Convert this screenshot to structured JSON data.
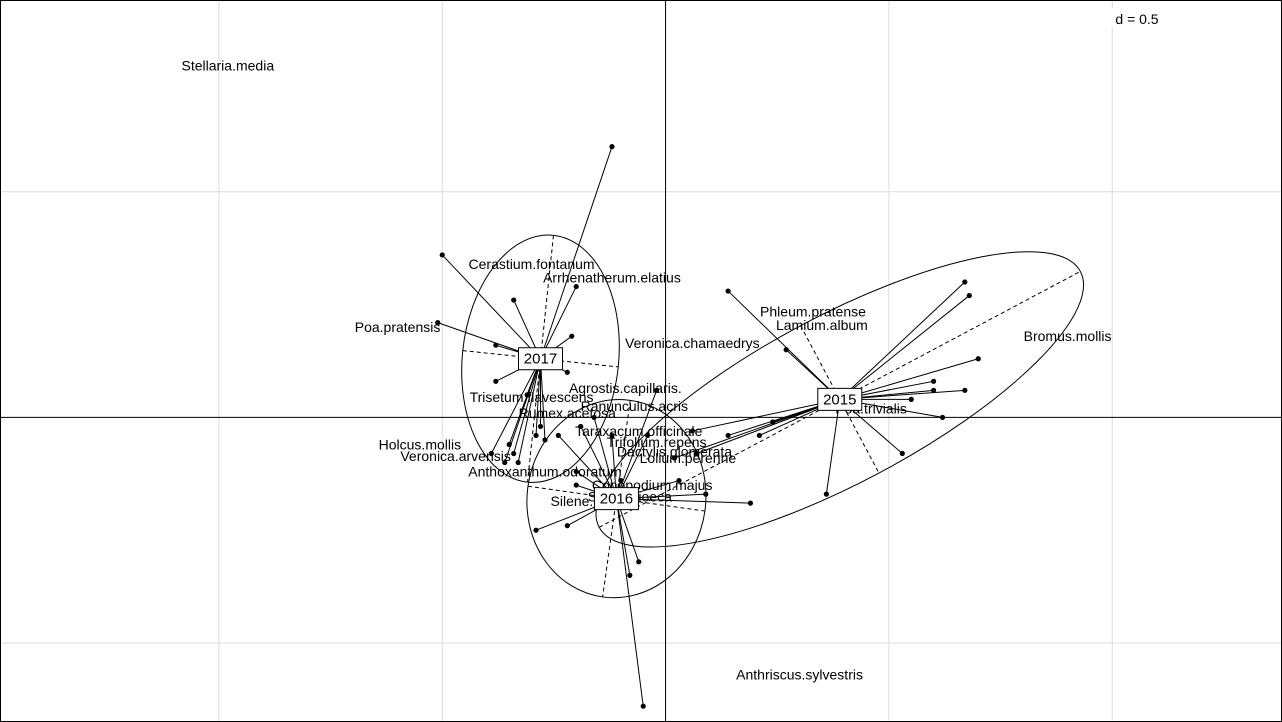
{
  "chart_data": {
    "type": "scatter",
    "title": "",
    "grid_scale_label": "d = 0.5",
    "grid": true,
    "xlim": [
      -1.49,
      1.38
    ],
    "ylim": [
      -0.675,
      0.925
    ],
    "grid_step": 0.5,
    "groups": [
      {
        "name": "2017",
        "center": [
          -0.28,
          0.13
        ],
        "ellipse": {
          "rx": 0.175,
          "ry": 0.275,
          "angle": 6
        },
        "points": [
          [
            -0.12,
            0.6
          ],
          [
            -0.5,
            0.36
          ],
          [
            -0.51,
            0.21
          ],
          [
            -0.34,
            0.26
          ],
          [
            -0.2,
            0.29
          ],
          [
            -0.21,
            0.18
          ],
          [
            -0.38,
            0.16
          ],
          [
            -0.32,
            0.14
          ],
          [
            -0.22,
            0.1
          ],
          [
            -0.38,
            0.08
          ],
          [
            -0.31,
            0.05
          ],
          [
            -0.39,
            -0.08
          ],
          [
            -0.35,
            -0.06
          ],
          [
            -0.29,
            -0.04
          ],
          [
            -0.33,
            -0.1
          ],
          [
            -0.28,
            -0.02
          ],
          [
            -0.34,
            -0.08
          ],
          [
            -0.36,
            -0.1
          ],
          [
            -0.27,
            -0.05
          ]
        ]
      },
      {
        "name": "2016",
        "center": [
          -0.11,
          -0.18
        ],
        "ellipse": {
          "rx": 0.2,
          "ry": 0.22,
          "angle": 8
        },
        "points": [
          [
            -0.05,
            -0.64
          ],
          [
            -0.06,
            -0.32
          ],
          [
            -0.08,
            -0.35
          ],
          [
            -0.29,
            -0.25
          ],
          [
            -0.22,
            -0.24
          ],
          [
            -0.12,
            -0.04
          ],
          [
            -0.19,
            -0.02
          ],
          [
            -0.24,
            -0.04
          ],
          [
            -0.16,
            0.0
          ],
          [
            -0.02,
            0.06
          ],
          [
            0.19,
            -0.19
          ],
          [
            0.09,
            -0.17
          ],
          [
            -0.04,
            -0.04
          ],
          [
            -0.2,
            -0.15
          ],
          [
            -0.1,
            -0.14
          ],
          [
            -0.2,
            -0.12
          ],
          [
            0.03,
            -0.14
          ]
        ]
      },
      {
        "name": "2015",
        "center": [
          0.39,
          0.04
        ],
        "ellipse": {
          "rx": 0.61,
          "ry": 0.185,
          "angle": -28
        },
        "points": [
          [
            0.14,
            0.28
          ],
          [
            0.27,
            0.15
          ],
          [
            0.67,
            0.3
          ],
          [
            0.68,
            0.27
          ],
          [
            0.7,
            0.13
          ],
          [
            0.6,
            0.08
          ],
          [
            0.6,
            0.06
          ],
          [
            0.67,
            0.06
          ],
          [
            0.55,
            0.04
          ],
          [
            0.62,
            0.0
          ],
          [
            0.53,
            -0.08
          ],
          [
            0.36,
            -0.17
          ],
          [
            0.24,
            -0.01
          ],
          [
            0.21,
            -0.04
          ],
          [
            0.06,
            -0.03
          ],
          [
            0.02,
            -0.09
          ],
          [
            0.07,
            -0.08
          ],
          [
            0.14,
            -0.04
          ]
        ]
      }
    ],
    "variables": [
      {
        "name": "Stellaria.media",
        "x": -0.98,
        "y": 0.78
      },
      {
        "name": "Cerastium.fontanum",
        "x": -0.3,
        "y": 0.34
      },
      {
        "name": "Arrhenatherum.elatius",
        "x": -0.12,
        "y": 0.31
      },
      {
        "name": "Poa.pratensis",
        "x": -0.6,
        "y": 0.2
      },
      {
        "name": "Veronica.chamaedrys",
        "x": 0.06,
        "y": 0.165
      },
      {
        "name": "Phleum.pratense",
        "x": 0.33,
        "y": 0.235
      },
      {
        "name": "Lamium.album",
        "x": 0.35,
        "y": 0.205
      },
      {
        "name": "Bromus.mollis",
        "x": 0.9,
        "y": 0.18
      },
      {
        "name": "Agrostis.capillaris.",
        "x": -0.09,
        "y": 0.065
      },
      {
        "name": "Trisetum.flavescens",
        "x": -0.3,
        "y": 0.045
      },
      {
        "name": "Rumex.acetosa",
        "x": -0.22,
        "y": 0.01
      },
      {
        "name": "Ranunculus.acris",
        "x": -0.07,
        "y": 0.025
      },
      {
        "name": "Poa.trivialis",
        "x": 0.46,
        "y": 0.02
      },
      {
        "name": "Taraxacum.officinale",
        "x": -0.06,
        "y": -0.03
      },
      {
        "name": "Trifolium.repens",
        "x": -0.02,
        "y": -0.055
      },
      {
        "name": "Holcus.mollis",
        "x": -0.55,
        "y": -0.06
      },
      {
        "name": "Dactylis.glomerata",
        "x": 0.02,
        "y": -0.075
      },
      {
        "name": "Lolium.perenne",
        "x": 0.05,
        "y": -0.09
      },
      {
        "name": "Veronica.arvensis",
        "x": -0.47,
        "y": -0.085
      },
      {
        "name": "Anthoxanthum.odoratum",
        "x": -0.27,
        "y": -0.12
      },
      {
        "name": "Conopodium.majus",
        "x": -0.03,
        "y": -0.15
      },
      {
        "name": "Silene.dioeca",
        "x": -0.08,
        "y": -0.175
      },
      {
        "name": "Silene.alba",
        "x": -0.18,
        "y": -0.185
      },
      {
        "name": "Anthriscus.sylvestris",
        "x": 0.3,
        "y": -0.57
      }
    ]
  }
}
